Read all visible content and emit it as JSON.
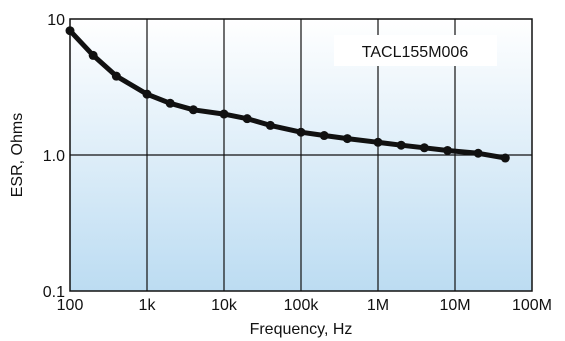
{
  "chart_data": {
    "type": "line",
    "xscale": "log",
    "yscale": "log",
    "xlim": [
      100,
      100000000
    ],
    "ylim": [
      0.1,
      10
    ],
    "xlabel": "Frequency, Hz",
    "ylabel": "ESR, Ohms",
    "grid": true,
    "x_ticks": [
      {
        "value": 100,
        "label": "100"
      },
      {
        "value": 1000,
        "label": "1k"
      },
      {
        "value": 10000,
        "label": "10k"
      },
      {
        "value": 100000,
        "label": "100k"
      },
      {
        "value": 1000000,
        "label": "1M"
      },
      {
        "value": 10000000,
        "label": "10M"
      },
      {
        "value": 100000000,
        "label": "100M"
      }
    ],
    "y_ticks": [
      {
        "value": 0.1,
        "label": "0.1"
      },
      {
        "value": 1,
        "label": "1.0"
      },
      {
        "value": 10,
        "label": "10"
      }
    ],
    "legend_position": "top-right",
    "series": [
      {
        "name": "TACL155M006",
        "color": "#111111",
        "points": [
          {
            "x": 100,
            "y": 8.2
          },
          {
            "x": 200,
            "y": 5.4
          },
          {
            "x": 400,
            "y": 3.8
          },
          {
            "x": 1000,
            "y": 2.8
          },
          {
            "x": 2000,
            "y": 2.4
          },
          {
            "x": 4000,
            "y": 2.15
          },
          {
            "x": 10000,
            "y": 2.0
          },
          {
            "x": 20000,
            "y": 1.85
          },
          {
            "x": 40000,
            "y": 1.65
          },
          {
            "x": 100000,
            "y": 1.47
          },
          {
            "x": 200000,
            "y": 1.39
          },
          {
            "x": 400000,
            "y": 1.32
          },
          {
            "x": 1000000,
            "y": 1.24
          },
          {
            "x": 2000000,
            "y": 1.18
          },
          {
            "x": 4000000,
            "y": 1.13
          },
          {
            "x": 8000000,
            "y": 1.08
          },
          {
            "x": 20000000,
            "y": 1.03
          },
          {
            "x": 45000000,
            "y": 0.95
          }
        ]
      }
    ]
  },
  "colors": {
    "plot_top": "#ffffff",
    "plot_bottom": "#bcdcf2",
    "grid": "#111111",
    "legend_bg": "#ffffff"
  }
}
